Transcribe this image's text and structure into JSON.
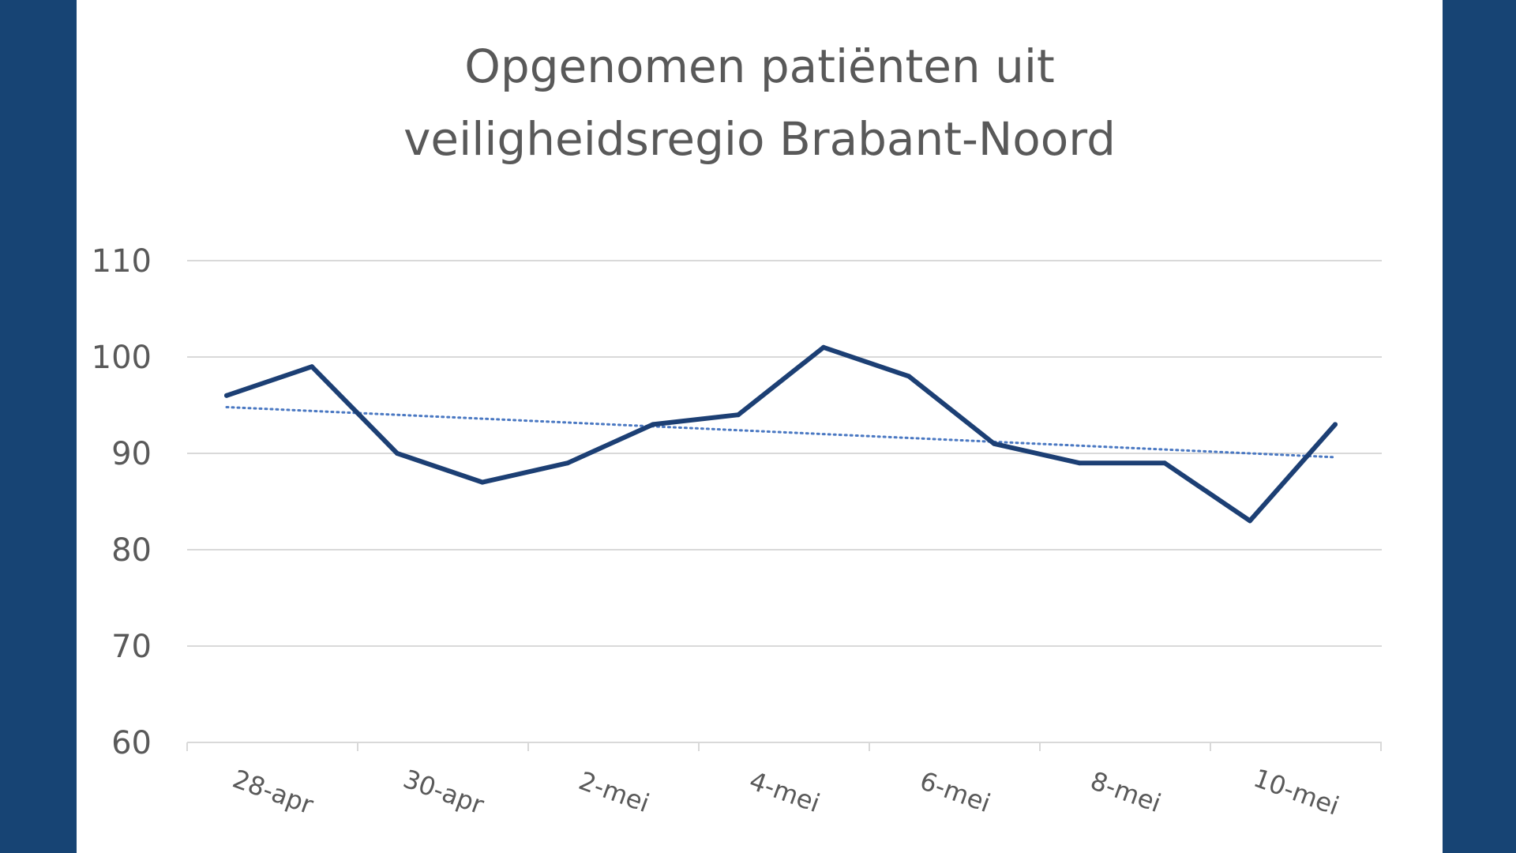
{
  "colors": {
    "background": "#174474",
    "panel": "#ffffff",
    "series": "#1c3f74",
    "trendline": "#4a78c2",
    "gridline": "#d9d9d9",
    "text": "#595959"
  },
  "chart_data": {
    "type": "line",
    "title_lines": [
      "Opgenomen patiënten uit",
      "veiligheidsregio Brabant-Noord"
    ],
    "xlabel": "",
    "ylabel": "",
    "x": [
      "28-apr",
      "29-apr",
      "30-apr",
      "1-mei",
      "2-mei",
      "3-mei",
      "4-mei",
      "5-mei",
      "6-mei",
      "7-mei",
      "8-mei",
      "9-mei",
      "10-mei",
      "11-mei"
    ],
    "x_tick_labels": [
      "28-apr",
      "30-apr",
      "2-mei",
      "4-mei",
      "6-mei",
      "8-mei",
      "10-mei"
    ],
    "series": [
      {
        "values": [
          96,
          99,
          90,
          87,
          89,
          93,
          94,
          101,
          98,
          91,
          89,
          89,
          83,
          93
        ],
        "style": "solid"
      }
    ],
    "trendline": {
      "type": "linear",
      "style": "dotted",
      "start": 94.8,
      "end": 89.6
    },
    "y_ticks": [
      60,
      70,
      80,
      90,
      100,
      110
    ],
    "ylim": [
      60,
      110
    ],
    "grid": true,
    "legend": "none"
  }
}
